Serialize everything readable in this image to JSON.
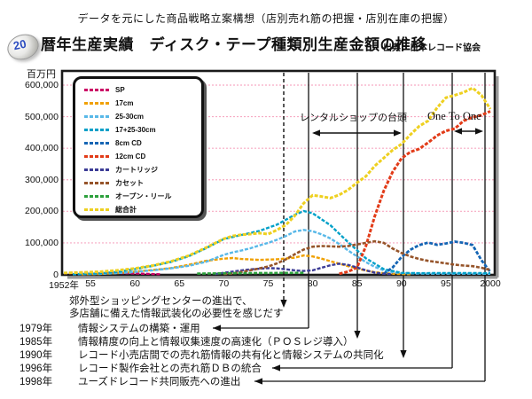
{
  "page": {
    "top_title": "データを元にした商品戦略立案構想（店別売れ筋の把握・店別在庫の把握）",
    "badge_number": "20",
    "heading": "暦年生産実績　ディスク・テープ種類別生産金額の推移",
    "source": "出典：日本レコード協会"
  },
  "chart_data": {
    "type": "line",
    "title": "ディスク・テープ種類別生産金額の推移",
    "ylabel": "百万円",
    "xlabel": "",
    "xlim": [
      1952,
      2000
    ],
    "ylim": [
      0,
      600000
    ],
    "grid": "horizontal pink dotted lines every 100,000",
    "legend_position": "top-left rounded box",
    "x_ticks": [
      {
        "label": "1952年",
        "year": 1952
      },
      {
        "label": "55",
        "year": 1955
      },
      {
        "label": "60",
        "year": 1960
      },
      {
        "label": "65",
        "year": 1965
      },
      {
        "label": "70",
        "year": 1970
      },
      {
        "label": "75",
        "year": 1975
      },
      {
        "label": "80",
        "year": 1980
      },
      {
        "label": "85",
        "year": 1985
      },
      {
        "label": "90",
        "year": 1990
      },
      {
        "label": "95",
        "year": 1995
      },
      {
        "label": "2000",
        "year": 2000
      }
    ],
    "y_ticks": [
      {
        "label": "0",
        "value": 0
      },
      {
        "label": "100,000",
        "value": 100000
      },
      {
        "label": "200,000",
        "value": 200000
      },
      {
        "label": "300,000",
        "value": 300000
      },
      {
        "label": "400,000",
        "value": 400000
      },
      {
        "label": "500,000",
        "value": 500000
      },
      {
        "label": "600,000",
        "value": 600000
      }
    ],
    "series": [
      {
        "name": "SP",
        "color": "#cc0066",
        "width": 2.4,
        "points": [
          [
            1952,
            4000
          ],
          [
            1954,
            5000
          ],
          [
            1956,
            5500
          ],
          [
            1958,
            4500
          ],
          [
            1960,
            3000
          ],
          [
            1962,
            1200
          ],
          [
            1963,
            300
          ]
        ]
      },
      {
        "name": "17cm",
        "color": "#f0a000",
        "width": 2.4,
        "points": [
          [
            1954,
            300
          ],
          [
            1956,
            1500
          ],
          [
            1958,
            4000
          ],
          [
            1960,
            9000
          ],
          [
            1962,
            14000
          ],
          [
            1964,
            20000
          ],
          [
            1966,
            30000
          ],
          [
            1968,
            43000
          ],
          [
            1970,
            50000
          ],
          [
            1971,
            52000
          ],
          [
            1972,
            49000
          ],
          [
            1974,
            46000
          ],
          [
            1976,
            48000
          ],
          [
            1978,
            53000
          ],
          [
            1979,
            60000
          ],
          [
            1980,
            57000
          ],
          [
            1981,
            50000
          ],
          [
            1982,
            42000
          ],
          [
            1983,
            34000
          ],
          [
            1984,
            26000
          ],
          [
            1985,
            19000
          ],
          [
            1986,
            12000
          ],
          [
            1987,
            7000
          ],
          [
            1988,
            4000
          ],
          [
            1989,
            2000
          ],
          [
            1990,
            1000
          ],
          [
            1991,
            500
          ]
        ]
      },
      {
        "name": "25-30cm",
        "color": "#58b8e8",
        "width": 2.4,
        "points": [
          [
            1953,
            300
          ],
          [
            1956,
            1800
          ],
          [
            1958,
            4000
          ],
          [
            1960,
            8000
          ],
          [
            1962,
            13000
          ],
          [
            1964,
            19000
          ],
          [
            1966,
            27000
          ],
          [
            1968,
            40000
          ],
          [
            1970,
            62000
          ],
          [
            1971,
            70000
          ],
          [
            1972,
            76000
          ],
          [
            1973,
            83000
          ],
          [
            1974,
            92000
          ],
          [
            1975,
            100000
          ],
          [
            1976,
            110000
          ],
          [
            1977,
            122000
          ],
          [
            1978,
            136000
          ],
          [
            1979,
            141000
          ],
          [
            1980,
            137000
          ],
          [
            1981,
            127000
          ],
          [
            1982,
            114000
          ],
          [
            1983,
            96000
          ],
          [
            1984,
            76000
          ],
          [
            1985,
            57000
          ],
          [
            1986,
            39000
          ],
          [
            1987,
            24000
          ],
          [
            1988,
            13000
          ],
          [
            1989,
            7000
          ],
          [
            1990,
            4000
          ],
          [
            1992,
            2500
          ],
          [
            1995,
            2200
          ],
          [
            1998,
            2200
          ],
          [
            2000,
            2000
          ]
        ]
      },
      {
        "name": "17+25-30cm",
        "color": "#00a0c8",
        "width": 2.4,
        "points": [
          [
            1953,
            600
          ],
          [
            1956,
            3300
          ],
          [
            1958,
            8000
          ],
          [
            1960,
            17000
          ],
          [
            1962,
            27000
          ],
          [
            1964,
            39000
          ],
          [
            1966,
            57000
          ],
          [
            1968,
            83000
          ],
          [
            1970,
            112000
          ],
          [
            1972,
            125000
          ],
          [
            1974,
            138000
          ],
          [
            1976,
            158000
          ],
          [
            1978,
            189000
          ],
          [
            1979,
            201000
          ],
          [
            1980,
            194000
          ],
          [
            1982,
            156000
          ],
          [
            1984,
            102000
          ],
          [
            1986,
            51000
          ],
          [
            1988,
            17000
          ],
          [
            1990,
            5000
          ],
          [
            1992,
            4000
          ],
          [
            1994,
            4500
          ],
          [
            1996,
            4500
          ],
          [
            1998,
            4500
          ],
          [
            2000,
            4000
          ]
        ]
      },
      {
        "name": "8cm CD",
        "color": "#1565b4",
        "width": 2.8,
        "points": [
          [
            1988,
            2000
          ],
          [
            1989,
            22000
          ],
          [
            1990,
            55000
          ],
          [
            1991,
            78000
          ],
          [
            1992,
            93000
          ],
          [
            1993,
            101000
          ],
          [
            1994,
            94000
          ],
          [
            1995,
            98000
          ],
          [
            1996,
            104000
          ],
          [
            1997,
            100000
          ],
          [
            1998,
            93000
          ],
          [
            1999,
            45000
          ],
          [
            2000,
            8000
          ]
        ]
      },
      {
        "name": "12cm CD",
        "color": "#e23b18",
        "width": 3,
        "points": [
          [
            1983,
            2000
          ],
          [
            1984,
            9000
          ],
          [
            1985,
            22000
          ],
          [
            1986,
            90000
          ],
          [
            1987,
            185000
          ],
          [
            1988,
            265000
          ],
          [
            1989,
            325000
          ],
          [
            1990,
            368000
          ],
          [
            1991,
            388000
          ],
          [
            1992,
            398000
          ],
          [
            1993,
            418000
          ],
          [
            1994,
            440000
          ],
          [
            1995,
            455000
          ],
          [
            1996,
            462000
          ],
          [
            1997,
            487000
          ],
          [
            1998,
            498000
          ],
          [
            1999,
            505000
          ],
          [
            2000,
            517000
          ]
        ]
      },
      {
        "name": "カートリッジ",
        "color": "#3c3c96",
        "width": 2.4,
        "points": [
          [
            1969,
            1000
          ],
          [
            1970,
            5000
          ],
          [
            1971,
            9000
          ],
          [
            1972,
            13000
          ],
          [
            1973,
            16000
          ],
          [
            1974,
            18000
          ],
          [
            1975,
            20000
          ],
          [
            1976,
            19000
          ],
          [
            1977,
            16000
          ],
          [
            1978,
            13000
          ],
          [
            1979,
            11000
          ],
          [
            1980,
            13000
          ],
          [
            1981,
            21000
          ],
          [
            1982,
            29000
          ],
          [
            1983,
            34000
          ],
          [
            1984,
            30000
          ],
          [
            1985,
            22000
          ],
          [
            1986,
            13000
          ],
          [
            1987,
            6000
          ],
          [
            1988,
            2000
          ],
          [
            1989,
            500
          ]
        ]
      },
      {
        "name": "カセット",
        "color": "#96542a",
        "width": 2.6,
        "points": [
          [
            1970,
            1000
          ],
          [
            1971,
            3000
          ],
          [
            1972,
            8000
          ],
          [
            1973,
            13000
          ],
          [
            1974,
            19000
          ],
          [
            1975,
            25000
          ],
          [
            1976,
            35000
          ],
          [
            1977,
            48000
          ],
          [
            1978,
            64000
          ],
          [
            1979,
            79000
          ],
          [
            1980,
            88000
          ],
          [
            1981,
            90000
          ],
          [
            1982,
            89000
          ],
          [
            1983,
            88000
          ],
          [
            1984,
            90000
          ],
          [
            1985,
            95000
          ],
          [
            1986,
            100000
          ],
          [
            1987,
            105000
          ],
          [
            1988,
            100000
          ],
          [
            1989,
            82000
          ],
          [
            1990,
            68000
          ],
          [
            1991,
            57000
          ],
          [
            1992,
            49000
          ],
          [
            1993,
            43000
          ],
          [
            1994,
            39000
          ],
          [
            1995,
            35000
          ],
          [
            1996,
            31000
          ],
          [
            1997,
            28000
          ],
          [
            1998,
            26000
          ],
          [
            1999,
            21000
          ],
          [
            2000,
            14000
          ]
        ]
      },
      {
        "name": "オープン・リール",
        "color": "#2ca03c",
        "width": 2.6,
        "points": [
          [
            1967,
            2500
          ],
          [
            1971,
            4000
          ],
          [
            1975,
            4500
          ],
          [
            1979,
            5000
          ]
        ]
      },
      {
        "name": "総合計",
        "color": "#eed020",
        "width": 3,
        "points": [
          [
            1952,
            4500
          ],
          [
            1954,
            6500
          ],
          [
            1956,
            8500
          ],
          [
            1958,
            13000
          ],
          [
            1960,
            19000
          ],
          [
            1962,
            28000
          ],
          [
            1964,
            41000
          ],
          [
            1966,
            59000
          ],
          [
            1968,
            85000
          ],
          [
            1970,
            113000
          ],
          [
            1971,
            122000
          ],
          [
            1972,
            126000
          ],
          [
            1973,
            128000
          ],
          [
            1974,
            131000
          ],
          [
            1975,
            128000
          ],
          [
            1976,
            141000
          ],
          [
            1977,
            157000
          ],
          [
            1978,
            186000
          ],
          [
            1979,
            226000
          ],
          [
            1980,
            251000
          ],
          [
            1981,
            247000
          ],
          [
            1982,
            242000
          ],
          [
            1983,
            252000
          ],
          [
            1984,
            268000
          ],
          [
            1985,
            291000
          ],
          [
            1986,
            311000
          ],
          [
            1987,
            344000
          ],
          [
            1988,
            369000
          ],
          [
            1989,
            394000
          ],
          [
            1990,
            413000
          ],
          [
            1991,
            443000
          ],
          [
            1992,
            470000
          ],
          [
            1993,
            487000
          ],
          [
            1994,
            528000
          ],
          [
            1995,
            560000
          ],
          [
            1996,
            568000
          ],
          [
            1997,
            577000
          ],
          [
            1998,
            591000
          ],
          [
            1999,
            568000
          ],
          [
            2000,
            524000
          ]
        ]
      }
    ],
    "annotations": [
      {
        "text": "レンタルショップの台頭",
        "span_years": [
          1980,
          1990
        ],
        "style": "double-arrow"
      },
      {
        "text": "One To One",
        "span_years": [
          1996,
          1999.5
        ],
        "style": "double-arrow"
      }
    ],
    "grid_color": "#f7aac3"
  },
  "timeline": {
    "note_lines": [
      "郊外型ショッピングセンターの進出で、",
      "多店舗に備えた情報武装化の必要性を感じだす"
    ],
    "events": [
      {
        "year": "1979年",
        "text": "情報システムの構築・運用"
      },
      {
        "year": "1985年",
        "text": "情報精度の向上と情報収集速度の高速化（ＰＯＳレジ導入）"
      },
      {
        "year": "1990年",
        "text": "レコード小売店間での売れ筋情報の共有化と情報システムの共同化"
      },
      {
        "year": "1996年",
        "text": "レコード製作会社との売れ筋ＤＢの統合"
      },
      {
        "year": "1998年",
        "text": "ユーズドレコード共同販売への進出"
      }
    ]
  }
}
